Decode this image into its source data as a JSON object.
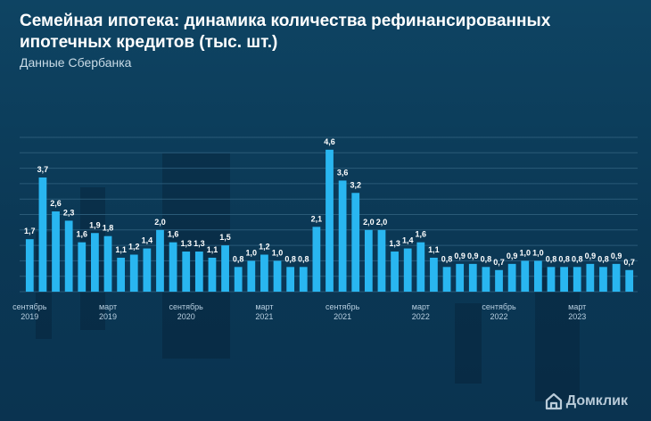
{
  "header": {
    "title": "Семейная ипотека: динамика количества рефинансированных ипотечных кредитов (тыс. шт.)",
    "subtitle": "Данные Сбербанка"
  },
  "brand": {
    "name": "Домклик",
    "icon": "house-logo-icon"
  },
  "colors": {
    "bar": "#29b6f0",
    "grid": "#2a5a78",
    "label": "#ffffff",
    "axis_text": "#b8cfe0"
  },
  "chart_data": {
    "type": "bar",
    "title": "Семейная ипотека: динамика количества рефинансированных ипотечных кредитов (тыс. шт.)",
    "subtitle": "Данные Сбербанка",
    "xlabel": "",
    "ylabel": "",
    "ylim": [
      0,
      5
    ],
    "grid": true,
    "categories": [
      "сентябрь 2019",
      "",
      "",
      "",
      "",
      "",
      "март 2019",
      "",
      "",
      "",
      "",
      "",
      "сентябрь 2020",
      "",
      "",
      "",
      "",
      "",
      "март 2021",
      "",
      "",
      "",
      "",
      "",
      "сентябрь 2021",
      "",
      "",
      "",
      "",
      "",
      "март 2022",
      "",
      "",
      "",
      "",
      "",
      "сентябрь 2022",
      "",
      "",
      "",
      "",
      "",
      "март 2023",
      "",
      "",
      "",
      ""
    ],
    "tick_labels": [
      {
        "index": 0,
        "line1": "сентябрь",
        "line2": "2019"
      },
      {
        "index": 6,
        "line1": "март",
        "line2": "2019"
      },
      {
        "index": 12,
        "line1": "сентябрь",
        "line2": "2020"
      },
      {
        "index": 18,
        "line1": "март",
        "line2": "2021"
      },
      {
        "index": 24,
        "line1": "сентябрь",
        "line2": "2021"
      },
      {
        "index": 30,
        "line1": "март",
        "line2": "2022"
      },
      {
        "index": 36,
        "line1": "сентябрь",
        "line2": "2022"
      },
      {
        "index": 42,
        "line1": "март",
        "line2": "2023"
      }
    ],
    "values": [
      1.7,
      3.7,
      2.6,
      2.3,
      1.6,
      1.9,
      1.8,
      1.1,
      1.2,
      1.4,
      2.0,
      1.6,
      1.3,
      1.3,
      1.1,
      1.5,
      0.8,
      1.0,
      1.2,
      1.0,
      0.8,
      0.8,
      2.1,
      4.6,
      3.6,
      3.2,
      2.0,
      2.0,
      1.3,
      1.4,
      1.6,
      1.1,
      0.8,
      0.9,
      0.9,
      0.8,
      0.7,
      0.9,
      1.0,
      1.0,
      0.8,
      0.8,
      0.8,
      0.9,
      0.8,
      0.9,
      0.7
    ],
    "value_labels": [
      "1,7",
      "3,7",
      "2,6",
      "2,3",
      "1,6",
      "1,9",
      "1,8",
      "1,1",
      "1,2",
      "1,4",
      "2,0",
      "1,6",
      "1,3",
      "1,3",
      "1,1",
      "1,5",
      "0,8",
      "1,0",
      "1,2",
      "1,0",
      "0,8",
      "0,8",
      "2,1",
      "4,6",
      "3,6",
      "3,2",
      "2,0",
      "2,0",
      "1,3",
      "1,4",
      "1,6",
      "1,1",
      "0,8",
      "0,9",
      "0,9",
      "0,8",
      "0,7",
      "0,9",
      "1,0",
      "1,0",
      "0,8",
      "0,8",
      "0,8",
      "0,9",
      "0,8",
      "0,9",
      "0,7"
    ]
  }
}
